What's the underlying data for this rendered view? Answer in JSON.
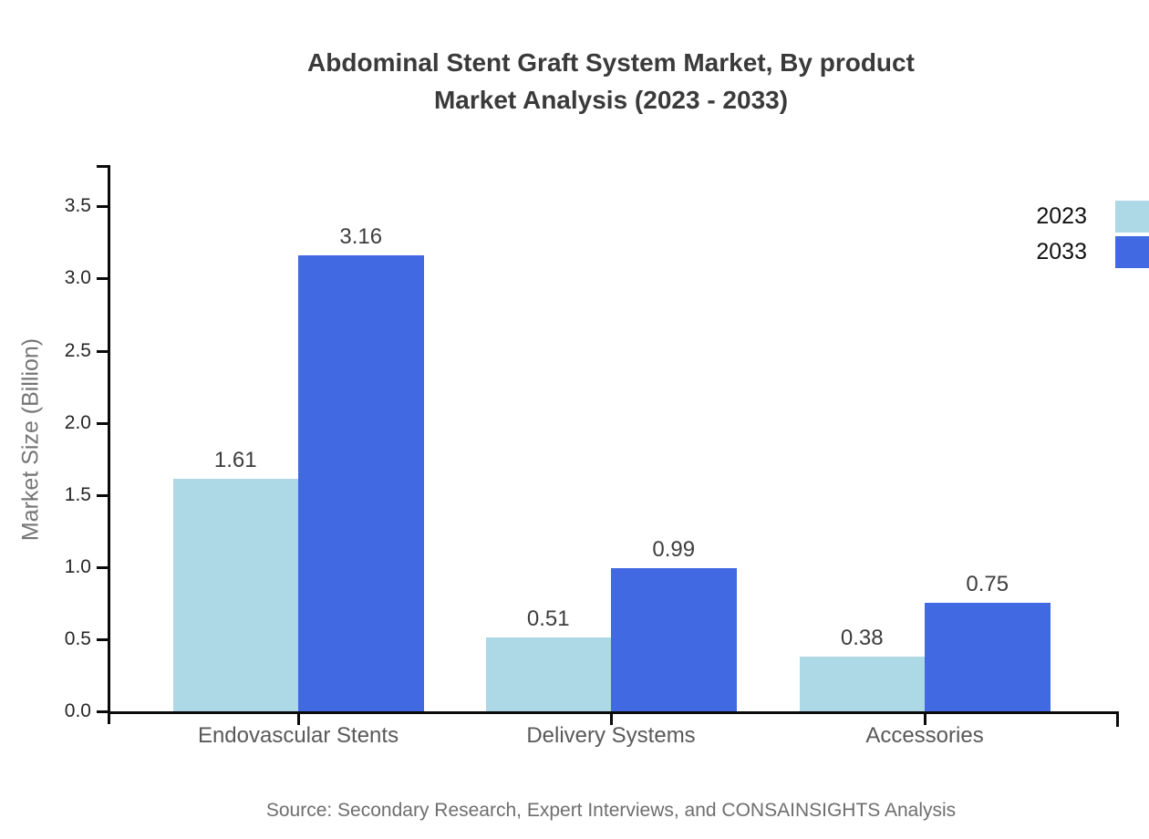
{
  "title": {
    "line1": "Abdominal Stent Graft System Market, By product",
    "line2": "Market Analysis (2023 - 2033)"
  },
  "source": "Source: Secondary Research, Expert Interviews, and CONSAINSIGHTS Analysis",
  "colors": {
    "series_2023": "#add8e6",
    "series_2033": "#4169e1",
    "axis": "#0a0a0a",
    "title_text": "#3a3a3a",
    "value_label_text": "#3d3d3d",
    "category_text": "#595959",
    "y_axis_title_text": "#757575",
    "source_text": "#6e6e6e",
    "legend_text": "#111111"
  },
  "legend": {
    "items": [
      {
        "label": "2023",
        "color": "#add8e6"
      },
      {
        "label": "2033",
        "color": "#4169e1"
      }
    ]
  },
  "chart_data": {
    "type": "bar",
    "title": "Abdominal Stent Graft System Market, By product Market Analysis (2023 - 2033)",
    "categories": [
      "Endovascular Stents",
      "Delivery Systems",
      "Accessories"
    ],
    "series": [
      {
        "name": "2023",
        "color": "#add8e6",
        "values": [
          1.61,
          0.51,
          0.38
        ]
      },
      {
        "name": "2033",
        "color": "#4169e1",
        "values": [
          3.16,
          0.99,
          0.75
        ]
      }
    ],
    "xlabel": "",
    "ylabel": "Market Size (Billion)",
    "ylim": [
      0,
      3.5
    ],
    "ytick_step": 0.5,
    "ytick_labels": [
      "0.0",
      "0.5",
      "1.0",
      "1.5",
      "2.0",
      "2.5",
      "3.0",
      "3.5"
    ],
    "grid": false,
    "value_labels": true,
    "legend_position": "top-right"
  }
}
